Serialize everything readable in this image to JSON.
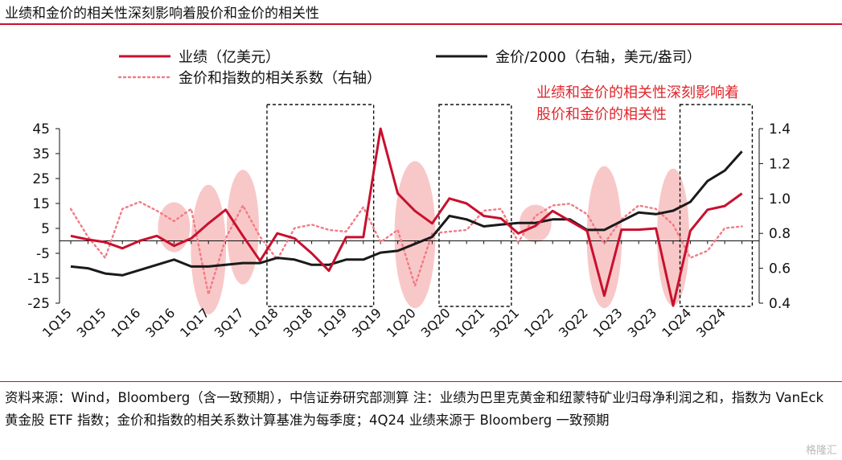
{
  "figure_title": "业绩和金价的相关性深刻影响着股价和金价的相关性",
  "source_note": "资料来源：Wind，Bloomberg（含一致预期），中信证券研究部测算 注：业绩为巴里克黄金和纽蒙特矿业归母净利润之和，指数为 VanEck 黄金股 ETF 指数；金价和指数的相关系数计算基准为每季度；4Q24 业绩来源于 Bloomberg 一致预期",
  "watermark": "格隆汇",
  "chart_data": {
    "type": "line",
    "annotation": [
      "业绩和金价的相关性深刻影响着",
      "股价和金价的相关性"
    ],
    "x": [
      "1Q15",
      "2Q15",
      "3Q15",
      "4Q15",
      "1Q16",
      "2Q16",
      "3Q16",
      "4Q16",
      "1Q17",
      "2Q17",
      "3Q17",
      "4Q17",
      "1Q18",
      "2Q18",
      "3Q18",
      "4Q18",
      "1Q19",
      "2Q19",
      "3Q19",
      "4Q19",
      "1Q20",
      "2Q20",
      "3Q20",
      "4Q20",
      "1Q21",
      "2Q21",
      "3Q21",
      "4Q21",
      "1Q22",
      "2Q22",
      "3Q22",
      "4Q22",
      "1Q23",
      "2Q23",
      "3Q23",
      "4Q23",
      "1Q24",
      "2Q24",
      "3Q24",
      "4Q24"
    ],
    "x_tick_labels": [
      "1Q15",
      "3Q15",
      "1Q16",
      "3Q16",
      "1Q17",
      "3Q17",
      "1Q18",
      "3Q18",
      "1Q19",
      "3Q19",
      "1Q20",
      "3Q20",
      "1Q21",
      "3Q21",
      "1Q22",
      "3Q22",
      "1Q23",
      "3Q23",
      "1Q24",
      "3Q24"
    ],
    "left_axis": {
      "ylim": [
        -25,
        45
      ],
      "ticks": [
        45,
        35,
        25,
        15,
        5,
        -5,
        -15,
        -25
      ]
    },
    "right_axis": {
      "ylim": [
        0.4,
        1.4
      ],
      "ticks": [
        1.4,
        1.2,
        1.0,
        0.8,
        0.6,
        0.4
      ]
    },
    "series": [
      {
        "name": "业绩（亿美元）",
        "axis": "left",
        "style": "solid",
        "color": "#c8102e",
        "values": [
          2,
          0.5,
          -0.5,
          -3,
          0,
          2,
          -2,
          1,
          7,
          12.5,
          2,
          -8,
          3,
          1,
          -5,
          -12,
          1.5,
          1.5,
          45,
          19,
          12,
          7,
          17,
          15,
          10,
          9,
          3,
          6,
          12,
          8,
          4,
          -22,
          4.5,
          4.5,
          5,
          -26,
          4,
          12.5,
          14,
          19
        ]
      },
      {
        "name": "金价/2000（右轴，美元/盎司）",
        "axis": "right",
        "style": "solid",
        "color": "#1a1a1a",
        "values": [
          0.61,
          0.6,
          0.57,
          0.56,
          0.59,
          0.62,
          0.65,
          0.61,
          0.61,
          0.62,
          0.63,
          0.63,
          0.66,
          0.65,
          0.62,
          0.62,
          0.65,
          0.65,
          0.69,
          0.7,
          0.74,
          0.78,
          0.9,
          0.88,
          0.84,
          0.85,
          0.86,
          0.86,
          0.88,
          0.88,
          0.82,
          0.82,
          0.87,
          0.92,
          0.91,
          0.93,
          0.98,
          1.1,
          1.16,
          1.27
        ]
      },
      {
        "name": "金价和指数的相关系数（右轴）",
        "axis": "right",
        "style": "dotted",
        "color": "#f07b85",
        "values": [
          0.94,
          0.78,
          0.66,
          0.94,
          0.98,
          0.93,
          0.87,
          0.94,
          0.45,
          0.77,
          0.96,
          0.78,
          0.65,
          0.83,
          0.85,
          0.82,
          0.81,
          0.95,
          0.75,
          0.82,
          0.5,
          0.8,
          0.81,
          0.82,
          0.93,
          0.94,
          0.75,
          0.9,
          0.96,
          0.97,
          0.91,
          0.74,
          0.88,
          0.96,
          0.94,
          0.85,
          0.66,
          0.7,
          0.83,
          0.84
        ]
      }
    ],
    "highlight_ellipses": [
      {
        "center_x": "3Q16",
        "center_y_left": 5.5,
        "half_width_quarters": 0.55,
        "half_height_left": 10
      },
      {
        "center_x": "1Q17",
        "center_y_left": -3.5,
        "half_width_quarters": 0.6,
        "half_height_left": 26
      },
      {
        "center_x": "3Q17",
        "center_y_left": 5.5,
        "half_width_quarters": 0.55,
        "half_height_left": 23
      },
      {
        "center_x": "1Q20",
        "center_y_left": 2.5,
        "half_width_quarters": 0.7,
        "half_height_left": 29.5
      },
      {
        "center_x": "4Q21",
        "center_y_left": 7,
        "half_width_quarters": 0.55,
        "half_height_left": 7.5
      },
      {
        "center_x": "4Q22",
        "center_y_left": 1.5,
        "half_width_quarters": 0.6,
        "half_height_left": 28.5
      },
      {
        "center_x": "4Q23",
        "center_y_left": 1.5,
        "half_width_quarters": 0.55,
        "half_height_left": 27.5
      }
    ],
    "dashed_boxes": [
      {
        "from": "1Q18",
        "to": "2Q19"
      },
      {
        "from": "3Q20",
        "to": "2Q21"
      },
      {
        "from": "1Q24",
        "to": "4Q24"
      }
    ]
  }
}
